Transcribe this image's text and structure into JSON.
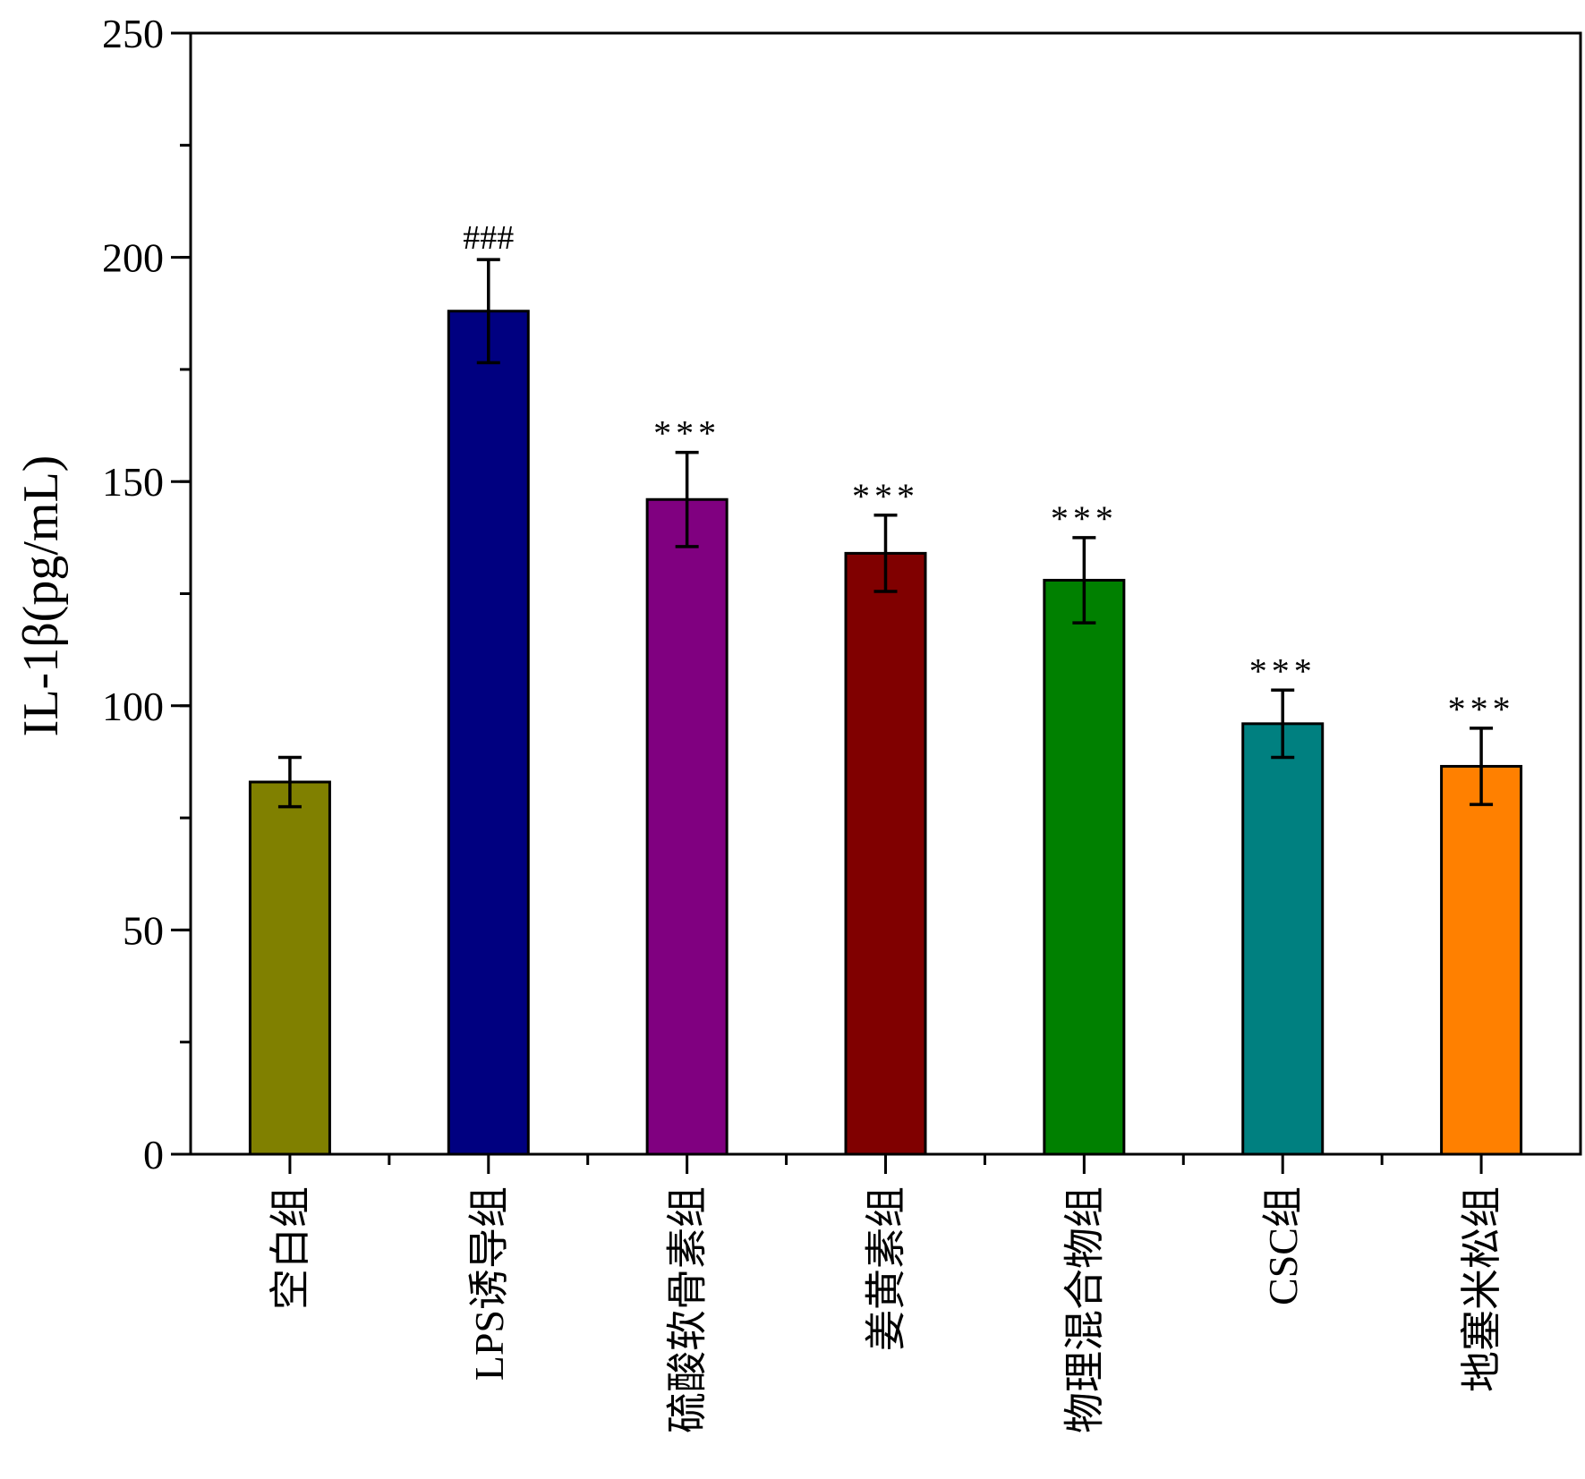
{
  "chart_data": {
    "type": "bar",
    "ylabel": "IL-1β(pg/mL)",
    "xlabel": "",
    "ylim": [
      0,
      250
    ],
    "yticks": [
      0,
      50,
      100,
      150,
      200,
      250
    ],
    "ytick_labels": [
      "0",
      "50",
      "100",
      "150",
      "200",
      "250"
    ],
    "y_minor_step": 25,
    "grid": false,
    "categories": [
      "空白组",
      "LPS诱导组",
      "硫酸软骨素组",
      "姜黄素组",
      "物理混合物组",
      "CSC组",
      "地塞米松组"
    ],
    "values": [
      83,
      188,
      146,
      134,
      128,
      96,
      86.5
    ],
    "errors": [
      5.5,
      11.5,
      10.5,
      8.5,
      9.5,
      7.5,
      8.5
    ],
    "annotations": [
      "",
      "###",
      "***",
      "***",
      "***",
      "***",
      "***"
    ],
    "colors": [
      "#808000",
      "#000080",
      "#800080",
      "#800000",
      "#008000",
      "#008080",
      "#ff8000"
    ]
  }
}
